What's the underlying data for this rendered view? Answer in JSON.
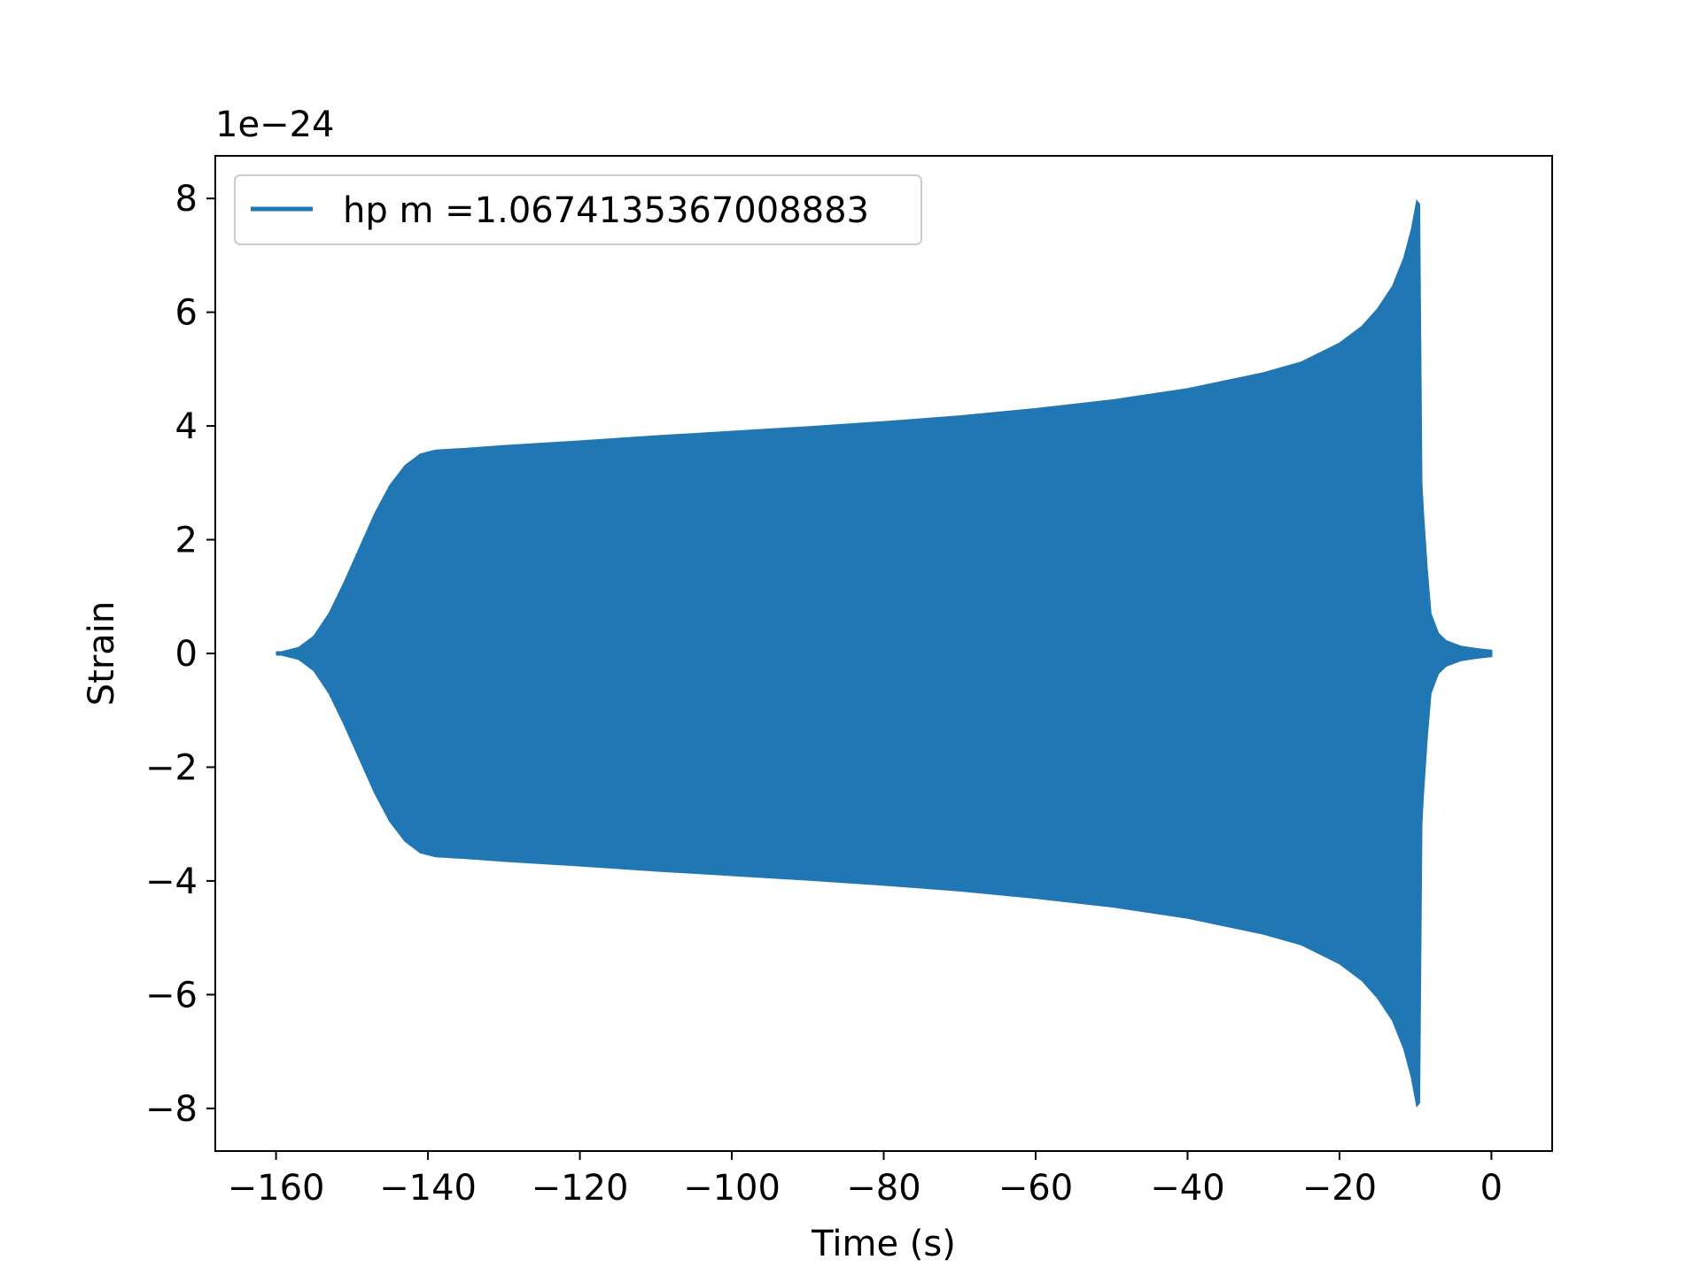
{
  "chart_data": {
    "type": "line",
    "title": "",
    "xlabel": "Time (s)",
    "ylabel": "Strain",
    "y_multiplier": "1e−24",
    "xlim": [
      -168,
      8
    ],
    "ylim": [
      -8.75,
      8.75
    ],
    "x_ticks": [
      {
        "value": -160,
        "label": "−160"
      },
      {
        "value": -140,
        "label": "−140"
      },
      {
        "value": -120,
        "label": "−120"
      },
      {
        "value": -100,
        "label": "−100"
      },
      {
        "value": -80,
        "label": "−80"
      },
      {
        "value": -60,
        "label": "−60"
      },
      {
        "value": -40,
        "label": "−40"
      },
      {
        "value": -20,
        "label": "−20"
      },
      {
        "value": 0,
        "label": "0"
      }
    ],
    "y_ticks": [
      {
        "value": 8,
        "label": "8"
      },
      {
        "value": 6,
        "label": "6"
      },
      {
        "value": 4,
        "label": "4"
      },
      {
        "value": 2,
        "label": "2"
      },
      {
        "value": 0,
        "label": "0"
      },
      {
        "value": -2,
        "label": "−2"
      },
      {
        "value": -4,
        "label": "−4"
      },
      {
        "value": -6,
        "label": "−6"
      },
      {
        "value": -8,
        "label": "−8"
      }
    ],
    "grid": false,
    "legend_position": "upper-left",
    "series": [
      {
        "name": "hp m =1.0674135367008883",
        "color": "#2077b4",
        "envelope": {
          "t": [
            -160,
            -157,
            -155,
            -153,
            -151,
            -149,
            -147,
            -145,
            -143,
            -141,
            -139,
            -135,
            -130,
            -120,
            -110,
            -105,
            -100,
            -90,
            -80,
            -70,
            -60,
            -50,
            -40,
            -30,
            -25,
            -20,
            -17,
            -15,
            -13,
            -11.5,
            -10.5,
            -9.8,
            -9.5,
            -9.2,
            -9.0,
            -8.5,
            -8.0,
            -7.0,
            -6.0,
            -4.0,
            -2.0,
            0
          ],
          "amplitude": [
            0.0,
            0.1,
            0.3,
            0.7,
            1.25,
            1.85,
            2.45,
            2.95,
            3.3,
            3.5,
            3.57,
            3.6,
            3.65,
            3.73,
            3.82,
            3.86,
            3.9,
            3.98,
            4.07,
            4.17,
            4.3,
            4.45,
            4.65,
            4.93,
            5.12,
            5.45,
            5.75,
            6.05,
            6.45,
            6.95,
            7.45,
            7.95,
            7.9,
            3.0,
            2.5,
            1.5,
            0.7,
            0.35,
            0.22,
            0.12,
            0.08,
            0.05
          ]
        }
      }
    ]
  }
}
